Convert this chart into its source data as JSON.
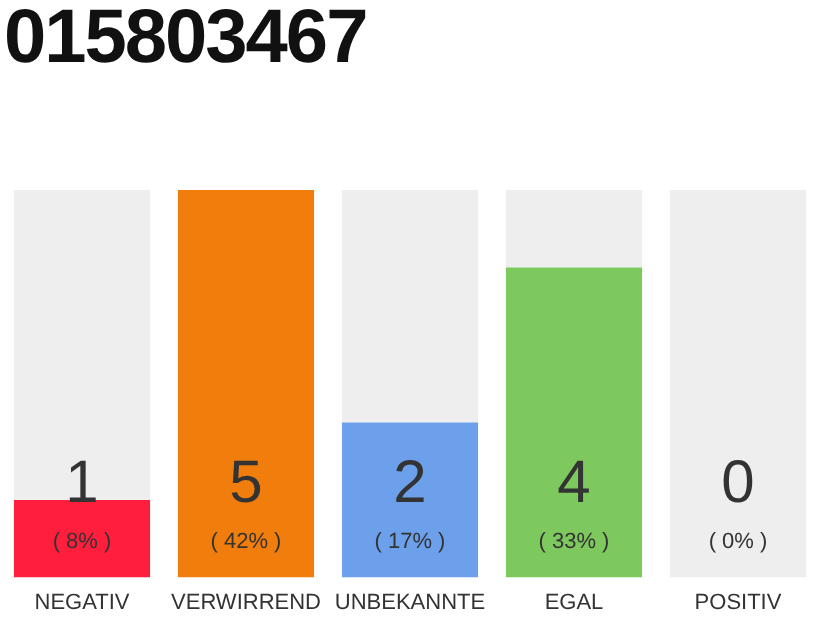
{
  "chart_data": {
    "type": "bar",
    "title": "015803467",
    "stacked": true,
    "categories": [
      "NEGATIV",
      "VERWIRREND",
      "UNBEKANNTE",
      "EGAL",
      "POSITIV"
    ],
    "series": [
      {
        "values": [
          1,
          5,
          2,
          4,
          0
        ],
        "colors": [
          "#ff1f3d",
          "#f07d0c",
          "#6ca0ea",
          "#7dc95e",
          "#7dc95e"
        ],
        "value_labels": [
          "1",
          "5",
          "2",
          "4",
          null
        ]
      },
      {
        "values": [
          4,
          0,
          3,
          1,
          5
        ],
        "color": "#eeeeee"
      }
    ],
    "ylim": [
      0,
      5
    ],
    "grid": false,
    "legend": false,
    "tick_labels": "x",
    "annotations": [
      "( 8% )",
      "( 42% )",
      "( 17% )",
      "( 33% )",
      "( 0% )",
      {
        "text": "0",
        "x": "POSITIV",
        "y": 0
      }
    ]
  }
}
